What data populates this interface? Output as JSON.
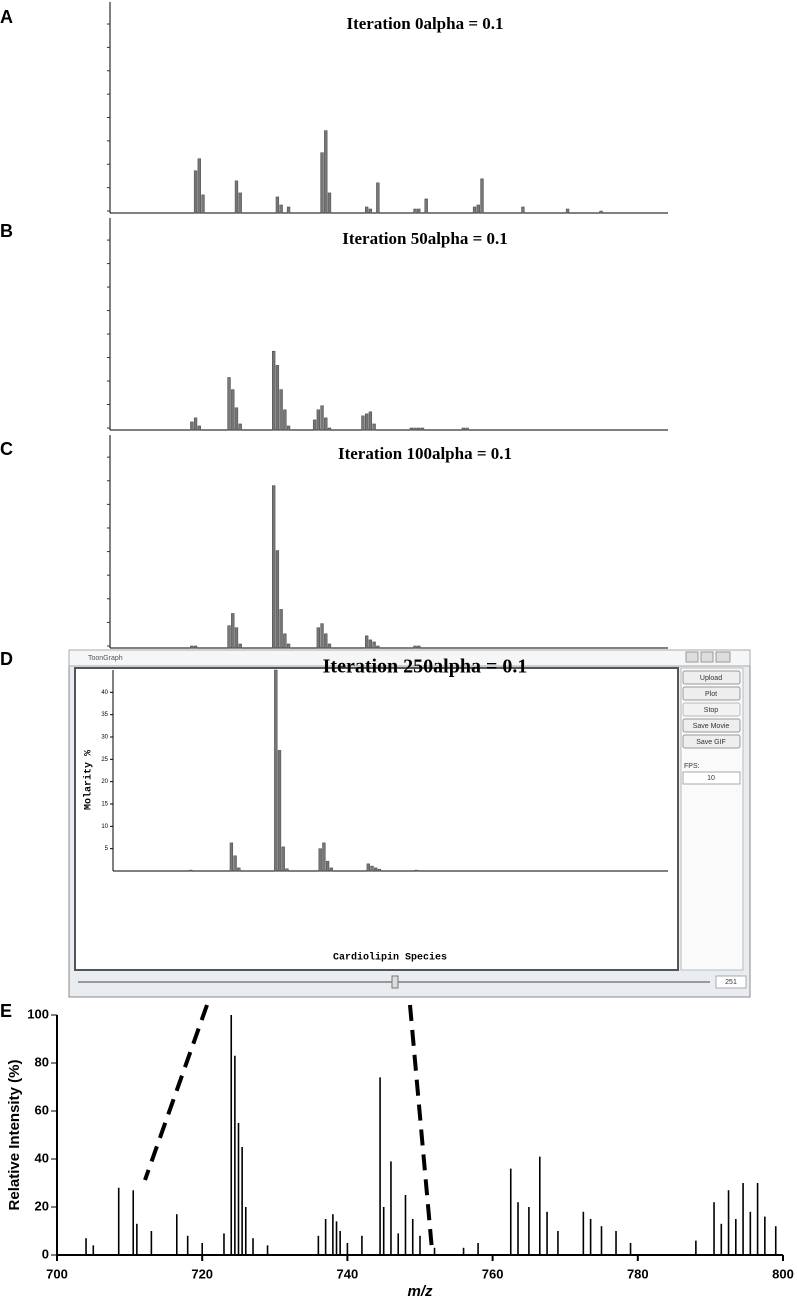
{
  "chart_data": [
    {
      "type": "bar",
      "label": "A",
      "title": "Iteration 0alpha = 0.1",
      "xlim": [
        0,
        150
      ],
      "ylim": [
        0,
        100
      ],
      "x": [
        23,
        24,
        25,
        34,
        35,
        45,
        46,
        48,
        57,
        58,
        59,
        69,
        70,
        72,
        82,
        83,
        85,
        98,
        99,
        100,
        111,
        123,
        132
      ],
      "values": [
        21,
        27,
        9,
        16,
        10,
        8,
        4,
        3,
        30,
        41,
        10,
        3,
        2,
        15,
        2,
        2,
        7,
        3,
        4,
        17,
        3,
        2,
        1
      ]
    },
    {
      "type": "bar",
      "label": "B",
      "title": "Iteration 50alpha = 0.1",
      "xlim": [
        0,
        150
      ],
      "ylim": [
        0,
        100
      ],
      "x": [
        22,
        23,
        24,
        32,
        33,
        34,
        35,
        44,
        45,
        46,
        47,
        48,
        55,
        56,
        57,
        58,
        59,
        68,
        69,
        70,
        71,
        81,
        82,
        83,
        84,
        95,
        96
      ],
      "values": [
        4,
        6,
        2,
        26,
        20,
        11,
        3,
        39,
        32,
        20,
        10,
        2,
        5,
        10,
        12,
        6,
        1,
        7,
        8,
        9,
        3,
        1,
        1,
        1,
        1,
        1,
        1
      ]
    },
    {
      "type": "bar",
      "label": "C",
      "title": "Iteration 100alpha = 0.1",
      "xlim": [
        0,
        150
      ],
      "ylim": [
        0,
        100
      ],
      "x": [
        22,
        23,
        32,
        33,
        34,
        35,
        44,
        45,
        46,
        47,
        48,
        56,
        57,
        58,
        59,
        69,
        70,
        71,
        72,
        82,
        83
      ],
      "values": [
        1,
        1,
        11,
        17,
        10,
        2,
        80,
        48,
        19,
        7,
        2,
        10,
        12,
        7,
        2,
        6,
        4,
        3,
        1,
        1,
        1
      ]
    },
    {
      "type": "bar",
      "label": "D",
      "title": "Iteration 250alpha = 0.1",
      "ylabel": "Molarity %",
      "xlabel": "Cardiolipin Species",
      "xlim": [
        0,
        150
      ],
      "ylim": [
        0,
        45
      ],
      "yticks": [
        5,
        10,
        15,
        20,
        25,
        30,
        35,
        40
      ],
      "x": [
        21,
        32,
        33,
        34,
        44,
        45,
        46,
        47,
        56,
        57,
        58,
        59,
        69,
        70,
        71,
        72,
        82
      ],
      "values": [
        0.2,
        6.3,
        3.4,
        0.7,
        45,
        27,
        5.4,
        0.5,
        5,
        6.3,
        2.2,
        0.7,
        1.6,
        1.1,
        0.7,
        0.4,
        0.2
      ]
    },
    {
      "type": "stem",
      "label": "E",
      "ylabel": "Relative Intensity (%)",
      "xlabel": "m/z",
      "xlim": [
        700,
        800
      ],
      "ylim": [
        0,
        100
      ],
      "xticks": [
        700,
        720,
        740,
        760,
        780,
        800
      ],
      "yticks": [
        0,
        20,
        40,
        60,
        80,
        100
      ],
      "x": [
        704,
        705,
        708.5,
        710.5,
        711,
        713,
        716.5,
        718,
        720,
        723,
        724,
        724.5,
        725,
        725.5,
        726,
        727,
        729,
        736,
        737,
        738,
        738.5,
        739,
        740,
        742,
        744.5,
        745,
        746,
        747,
        748,
        749,
        750,
        752,
        756,
        758,
        762.5,
        763.5,
        765,
        766.5,
        767.5,
        769,
        772.5,
        773.5,
        775,
        777,
        779,
        788,
        790.5,
        791.5,
        792.5,
        793.5,
        794.5,
        795.5,
        796.5,
        797.5,
        799
      ],
      "values": [
        7,
        4,
        28,
        27,
        13,
        10,
        17,
        8,
        5,
        9,
        100,
        83,
        55,
        45,
        20,
        7,
        4,
        8,
        15,
        17,
        14,
        10,
        5,
        8,
        74,
        20,
        39,
        9,
        25,
        15,
        8,
        3,
        3,
        5,
        36,
        22,
        20,
        41,
        18,
        10,
        18,
        15,
        12,
        10,
        5,
        6,
        22,
        13,
        27,
        15,
        30,
        18,
        30,
        16,
        12
      ]
    }
  ],
  "window": {
    "title": "ToonGraph",
    "buttons": [
      "Upload",
      "Plot",
      "Stop",
      "Save Movie",
      "Save GIF"
    ],
    "fps_label": "FPS:",
    "fps": 10,
    "frame": 251
  }
}
